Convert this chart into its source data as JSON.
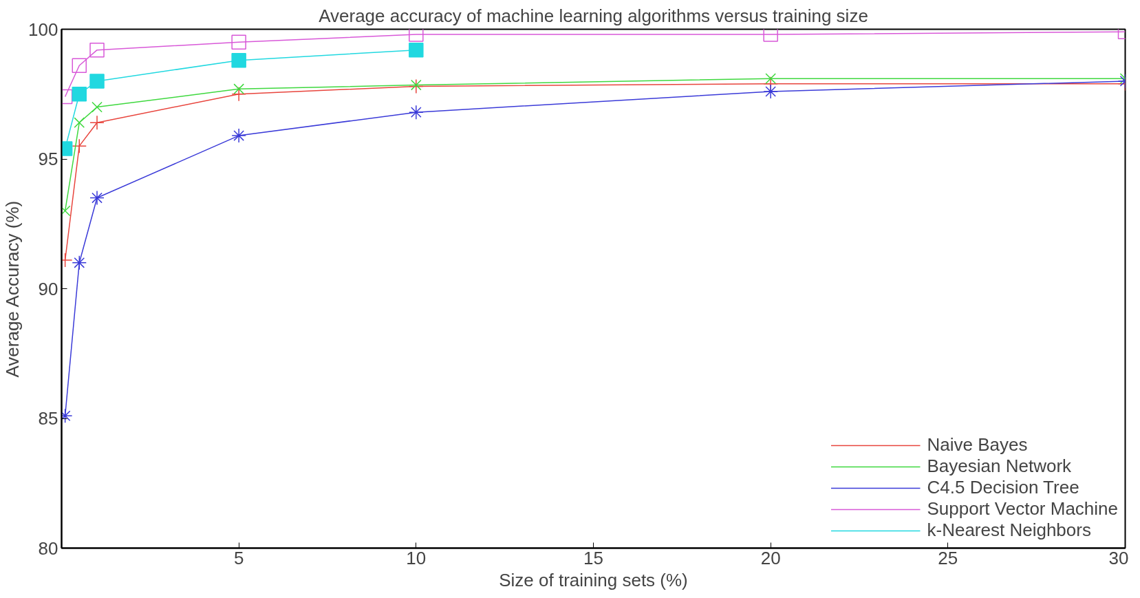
{
  "chart_data": {
    "type": "line",
    "title": "Average accuracy of machine learning algorithms versus training size",
    "xlabel": "Size of training sets (%)",
    "ylabel": "Average Accuracy (%)",
    "xlim": [
      0,
      30
    ],
    "xticks": [
      5,
      10,
      15,
      20,
      25,
      30
    ],
    "ylim": [
      80,
      100
    ],
    "yticks": [
      80,
      85,
      90,
      95,
      100
    ],
    "grid": false,
    "legend": "bottom right",
    "series": [
      {
        "name": "Naive Bayes",
        "color": "#e8443c",
        "marker": "plus",
        "x": [
          0.1,
          0.5,
          1,
          5,
          10,
          20,
          30
        ],
        "values": [
          91.1,
          95.5,
          96.4,
          97.5,
          97.8,
          97.9,
          97.9
        ]
      },
      {
        "name": "Bayesian Network",
        "color": "#3ed83e",
        "marker": "x",
        "x": [
          0.1,
          0.5,
          1,
          5,
          10,
          20,
          30
        ],
        "values": [
          93.0,
          96.4,
          97.0,
          97.7,
          97.85,
          98.1,
          98.1
        ]
      },
      {
        "name": "C4.5 Decision Tree",
        "color": "#3a3ad8",
        "marker": "cross",
        "x": [
          0.1,
          0.5,
          1,
          5,
          10,
          20,
          30
        ],
        "values": [
          85.1,
          91.0,
          93.5,
          95.9,
          96.8,
          97.6,
          98.0
        ]
      },
      {
        "name": "Support Vector Machine",
        "color": "#d858d8",
        "marker": "square",
        "x": [
          0.1,
          0.5,
          1,
          5,
          10,
          20,
          30
        ],
        "values": [
          97.4,
          98.6,
          99.2,
          99.5,
          99.8,
          99.8,
          99.9
        ]
      },
      {
        "name": "k-Nearest Neighbors",
        "color": "#20d8e0",
        "marker": "square_filled",
        "x": [
          0.1,
          0.5,
          1,
          5,
          10
        ],
        "values": [
          95.4,
          97.5,
          98.0,
          98.8,
          99.2
        ]
      }
    ]
  }
}
